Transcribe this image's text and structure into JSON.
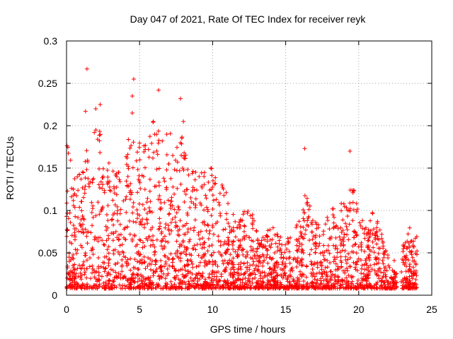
{
  "chart_data": {
    "type": "scatter",
    "title": "Day 047 of 2021, Rate Of TEC Index for receiver reyk",
    "xlabel": "GPS time / hours",
    "ylabel": "ROTI / TECUs",
    "xlim": [
      0,
      25
    ],
    "ylim": [
      0,
      0.3
    ],
    "x_ticks": [
      0,
      5,
      10,
      15,
      20,
      25
    ],
    "y_ticks": [
      0,
      0.05,
      0.1,
      0.15,
      0.2,
      0.25,
      0.3
    ],
    "x_tick_labels": [
      "0",
      "5",
      "10",
      "15",
      "20",
      "25"
    ],
    "y_tick_labels": [
      "0",
      "0.05",
      "0.1",
      "0.15",
      "0.2",
      "0.25",
      "0.3"
    ],
    "grid": true,
    "marker": "plus",
    "marker_color": "#ff0000",
    "envelope": {
      "description": "approximate upper envelope of dense point cloud (hour, ROTI)",
      "x": [
        0,
        0.5,
        1,
        1.5,
        2,
        2.5,
        3,
        3.5,
        4,
        4.5,
        5,
        5.5,
        6,
        6.5,
        7,
        7.5,
        8,
        8.5,
        9,
        9.5,
        10,
        10.5,
        11,
        11.5,
        12,
        12.5,
        13,
        13.5,
        14,
        14.5,
        15,
        15.5,
        16,
        16.5,
        17,
        17.5,
        18,
        18.5,
        19,
        19.5,
        20,
        20.5,
        21,
        21.5,
        22,
        22.5,
        23,
        23.5,
        24
      ],
      "y": [
        0.19,
        0.14,
        0.16,
        0.18,
        0.21,
        0.19,
        0.15,
        0.15,
        0.17,
        0.2,
        0.18,
        0.19,
        0.21,
        0.19,
        0.2,
        0.19,
        0.19,
        0.16,
        0.14,
        0.15,
        0.16,
        0.14,
        0.12,
        0.09,
        0.1,
        0.11,
        0.08,
        0.08,
        0.08,
        0.08,
        0.07,
        0.07,
        0.1,
        0.13,
        0.09,
        0.08,
        0.1,
        0.11,
        0.11,
        0.14,
        0.1,
        0.08,
        0.11,
        0.08,
        0.05,
        0.04,
        0.06,
        0.08,
        0.07
      ]
    },
    "outliers": [
      [
        1.4,
        0.267
      ],
      [
        4.6,
        0.255
      ],
      [
        6.3,
        0.242
      ],
      [
        7.8,
        0.232
      ],
      [
        4.5,
        0.235
      ],
      [
        2.3,
        0.225
      ],
      [
        2.0,
        0.22
      ],
      [
        1.3,
        0.217
      ],
      [
        4.5,
        0.215
      ],
      [
        16.3,
        0.173
      ],
      [
        19.4,
        0.17
      ],
      [
        8.0,
        0.205
      ]
    ],
    "point_count": 2600,
    "x_coverage": [
      [
        0,
        22.6
      ],
      [
        22.9,
        24.0
      ]
    ]
  }
}
